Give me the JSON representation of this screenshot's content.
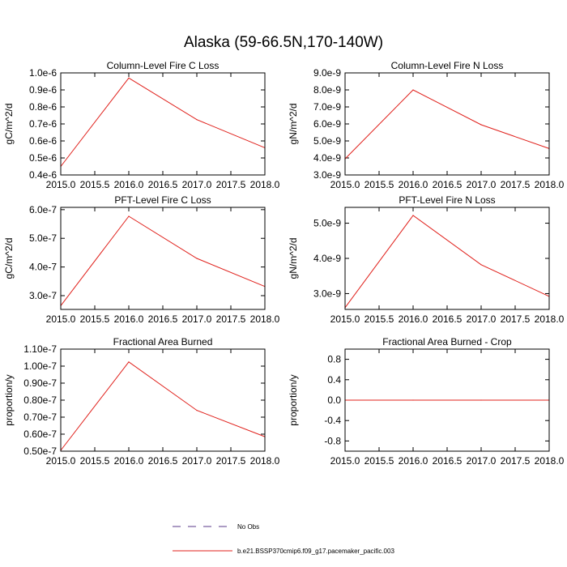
{
  "figure": {
    "title": "Alaska (59-66.5N,170-140W)"
  },
  "legend": {
    "entries": [
      {
        "label": "No Obs",
        "style": "dashed",
        "color": "#5a3a8a"
      },
      {
        "label": "b.e21.BSSP370cmip6.f09_g17.pacemaker_pacific.003",
        "style": "solid",
        "color": "#e0201b"
      }
    ]
  },
  "chart_data": [
    {
      "type": "line",
      "title": "Column-Level Fire C Loss",
      "ylabel": "gC/m^2/d",
      "xlim": [
        2015.0,
        2018.0
      ],
      "ylim": [
        4e-07,
        1e-06
      ],
      "xticks": [
        2015.0,
        2015.5,
        2016.0,
        2016.5,
        2017.0,
        2017.5,
        2018.0
      ],
      "xtick_labels": [
        "2015.0",
        "2015.5",
        "2016.0",
        "2016.5",
        "2017.0",
        "2017.5",
        "2018.0"
      ],
      "yticks": [
        4e-07,
        5e-07,
        6e-07,
        7e-07,
        8e-07,
        9e-07,
        1e-06
      ],
      "ytick_labels": [
        "0.4e-6",
        "0.5e-6",
        "0.6e-6",
        "0.7e-6",
        "0.8e-6",
        "0.9e-6",
        "1.0e-6"
      ],
      "series": [
        {
          "color": "#e0201b",
          "x": [
            2015.0,
            2016.0,
            2017.0,
            2018.0
          ],
          "y": [
            4.5e-07,
            9.7e-07,
            7.25e-07,
            5.6e-07
          ]
        }
      ]
    },
    {
      "type": "line",
      "title": "Column-Level Fire N Loss",
      "ylabel": "gN/m^2/d",
      "xlim": [
        2015.0,
        2018.0
      ],
      "ylim": [
        3e-09,
        9e-09
      ],
      "xticks": [
        2015.0,
        2015.5,
        2016.0,
        2016.5,
        2017.0,
        2017.5,
        2018.0
      ],
      "xtick_labels": [
        "2015.0",
        "2015.5",
        "2016.0",
        "2016.5",
        "2017.0",
        "2017.5",
        "2018.0"
      ],
      "yticks": [
        3e-09,
        4e-09,
        5e-09,
        6e-09,
        7e-09,
        8e-09,
        9e-09
      ],
      "ytick_labels": [
        "3.0e-9",
        "4.0e-9",
        "5.0e-9",
        "6.0e-9",
        "7.0e-9",
        "8.0e-9",
        "9.0e-9"
      ],
      "series": [
        {
          "color": "#e0201b",
          "x": [
            2015.0,
            2016.0,
            2017.0,
            2018.0
          ],
          "y": [
            3.95e-09,
            8e-09,
            5.95e-09,
            4.55e-09
          ]
        }
      ]
    },
    {
      "type": "line",
      "title": "PFT-Level Fire C Loss",
      "ylabel": "gC/m^2/d",
      "xlim": [
        2015.0,
        2018.0
      ],
      "ylim": [
        2.52e-07,
        6.08e-07
      ],
      "xticks": [
        2015.0,
        2015.5,
        2016.0,
        2016.5,
        2017.0,
        2017.5,
        2018.0
      ],
      "xtick_labels": [
        "2015.0",
        "2015.5",
        "2016.0",
        "2016.5",
        "2017.0",
        "2017.5",
        "2018.0"
      ],
      "yticks": [
        3e-07,
        4e-07,
        5e-07,
        6e-07
      ],
      "ytick_labels": [
        "3.0e-7",
        "4.0e-7",
        "5.0e-7",
        "6.0e-7"
      ],
      "series": [
        {
          "color": "#e0201b",
          "x": [
            2015.0,
            2016.0,
            2017.0,
            2018.0
          ],
          "y": [
            2.65e-07,
            5.77e-07,
            4.3e-07,
            3.32e-07
          ]
        }
      ]
    },
    {
      "type": "line",
      "title": "PFT-Level Fire N Loss",
      "ylabel": "gN/m^2/d",
      "xlim": [
        2015.0,
        2018.0
      ],
      "ylim": [
        2.55e-09,
        5.45e-09
      ],
      "xticks": [
        2015.0,
        2015.5,
        2016.0,
        2016.5,
        2017.0,
        2017.5,
        2018.0
      ],
      "xtick_labels": [
        "2015.0",
        "2015.5",
        "2016.0",
        "2016.5",
        "2017.0",
        "2017.5",
        "2018.0"
      ],
      "yticks": [
        3e-09,
        4e-09,
        5e-09
      ],
      "ytick_labels": [
        "3.0e-9",
        "4.0e-9",
        "5.0e-9"
      ],
      "series": [
        {
          "color": "#e0201b",
          "x": [
            2015.0,
            2016.0,
            2017.0,
            2018.0
          ],
          "y": [
            2.6e-09,
            5.22e-09,
            3.82e-09,
            2.92e-09
          ]
        }
      ]
    },
    {
      "type": "line",
      "title": "Fractional Area Burned",
      "ylabel": "proportion/y",
      "xlim": [
        2015.0,
        2018.0
      ],
      "ylim": [
        5e-08,
        1.1e-07
      ],
      "xticks": [
        2015.0,
        2015.5,
        2016.0,
        2016.5,
        2017.0,
        2017.5,
        2018.0
      ],
      "xtick_labels": [
        "2015.0",
        "2015.5",
        "2016.0",
        "2016.5",
        "2017.0",
        "2017.5",
        "2018.0"
      ],
      "yticks": [
        5e-08,
        6e-08,
        7e-08,
        8e-08,
        9e-08,
        1e-07,
        1.1e-07
      ],
      "ytick_labels": [
        "0.50e-7",
        "0.60e-7",
        "0.70e-7",
        "0.80e-7",
        "0.90e-7",
        "1.00e-7",
        "1.10e-7"
      ],
      "series": [
        {
          "color": "#e0201b",
          "x": [
            2015.0,
            2016.0,
            2017.0,
            2018.0
          ],
          "y": [
            5.05e-08,
            1.025e-07,
            7.4e-08,
            5.85e-08
          ]
        }
      ]
    },
    {
      "type": "line",
      "title": "Fractional Area Burned - Crop",
      "ylabel": "proportion/y",
      "xlim": [
        2015.0,
        2018.0
      ],
      "ylim": [
        -1.0,
        1.0
      ],
      "xticks": [
        2015.0,
        2015.5,
        2016.0,
        2016.5,
        2017.0,
        2017.5,
        2018.0
      ],
      "xtick_labels": [
        "2015.0",
        "2015.5",
        "2016.0",
        "2016.5",
        "2017.0",
        "2017.5",
        "2018.0"
      ],
      "yticks": [
        -0.8,
        -0.4,
        0.0,
        0.4,
        0.8
      ],
      "ytick_labels": [
        "-0.8",
        "-0.4",
        "0.0",
        "0.4",
        "0.8"
      ],
      "series": [
        {
          "color": "#e0201b",
          "x": [
            2015.0,
            2016.0,
            2017.0,
            2018.0
          ],
          "y": [
            0.0,
            0.0,
            0.0,
            0.0
          ]
        }
      ]
    }
  ]
}
